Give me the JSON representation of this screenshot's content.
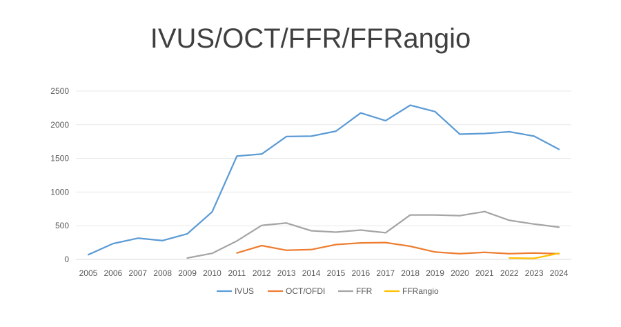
{
  "chart_data": {
    "type": "line",
    "title": "IVUS/OCT/FFR/FFRangio",
    "x": [
      "2005",
      "2006",
      "2007",
      "2008",
      "2009",
      "2010",
      "2011",
      "2012",
      "2013",
      "2014",
      "2015",
      "2016",
      "2017",
      "2018",
      "2019",
      "2020",
      "2021",
      "2022",
      "2023",
      "2024"
    ],
    "ylim": [
      0,
      2500
    ],
    "yticks": [
      0,
      500,
      1000,
      1500,
      2000,
      2500
    ],
    "grid": true,
    "legend_position": "bottom",
    "series": [
      {
        "name": "IVUS",
        "color": "#5B9BD5",
        "values": [
          70,
          235,
          315,
          280,
          380,
          705,
          1535,
          1565,
          1825,
          1830,
          1905,
          2175,
          2060,
          2290,
          2195,
          1860,
          1870,
          1895,
          1830,
          1635
        ]
      },
      {
        "name": "OCT/OFDI",
        "color": "#ED7D31",
        "values": [
          null,
          null,
          null,
          null,
          null,
          null,
          95,
          205,
          135,
          145,
          220,
          245,
          250,
          195,
          110,
          85,
          105,
          85,
          95,
          85
        ]
      },
      {
        "name": "FFR",
        "color": "#A5A5A5",
        "values": [
          null,
          null,
          null,
          null,
          20,
          90,
          275,
          505,
          540,
          425,
          405,
          435,
          395,
          660,
          660,
          650,
          710,
          580,
          525,
          480
        ]
      },
      {
        "name": "FFRangio",
        "color": "#FFC000",
        "values": [
          null,
          null,
          null,
          null,
          null,
          null,
          null,
          null,
          null,
          null,
          null,
          null,
          null,
          null,
          null,
          null,
          null,
          20,
          15,
          90
        ]
      }
    ]
  }
}
